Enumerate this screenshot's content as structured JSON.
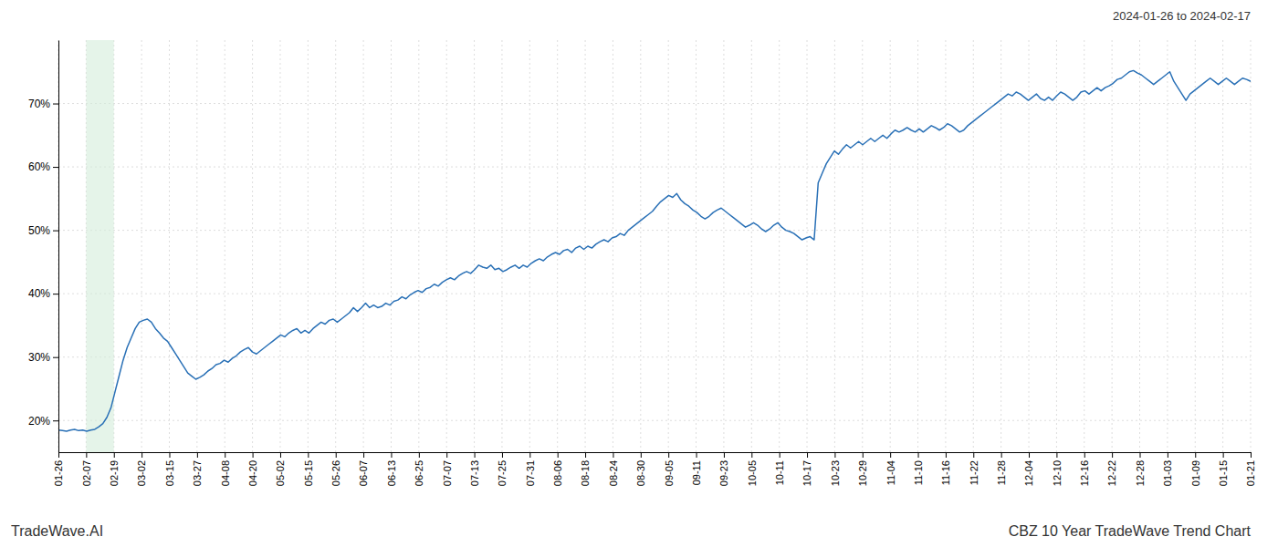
{
  "chart_data": {
    "type": "line",
    "title": "CBZ 10 Year TradeWave Trend Chart",
    "subtitle": "2024-01-26 to 2024-02-17",
    "annotations": [
      "TradeWave.AI"
    ],
    "color": "#2970b6",
    "grid": true,
    "xlim": [
      0,
      295
    ],
    "xticks": [
      {
        "value": 0,
        "label": "01-26"
      },
      {
        "value": 6.8604651163,
        "label": "02-07"
      },
      {
        "value": 13.7209302326,
        "label": "02-19"
      },
      {
        "value": 20.5813953488,
        "label": "03-02"
      },
      {
        "value": 27.4418604651,
        "label": "03-15"
      },
      {
        "value": 34.3023255814,
        "label": "03-27"
      },
      {
        "value": 41.1627906977,
        "label": "04-08"
      },
      {
        "value": 48.023255814,
        "label": "04-20"
      },
      {
        "value": 54.8837209302,
        "label": "05-02"
      },
      {
        "value": 61.7441860465,
        "label": "05-15"
      },
      {
        "value": 68.6046511628,
        "label": "05-26"
      },
      {
        "value": 75.4651162791,
        "label": "06-07"
      },
      {
        "value": 82.3255813953,
        "label": "06-13"
      },
      {
        "value": 89.1860465116,
        "label": "06-25"
      },
      {
        "value": 96.0465116279,
        "label": "07-07"
      },
      {
        "value": 102.9069767442,
        "label": "07-13"
      },
      {
        "value": 109.7674418605,
        "label": "07-25"
      },
      {
        "value": 116.6279069767,
        "label": "07-31"
      },
      {
        "value": 123.488372093,
        "label": "08-06"
      },
      {
        "value": 130.3488372093,
        "label": "08-18"
      },
      {
        "value": 137.2093023256,
        "label": "08-24"
      },
      {
        "value": 144.0697674419,
        "label": "08-30"
      },
      {
        "value": 150.9302325581,
        "label": "09-05"
      },
      {
        "value": 157.7906976744,
        "label": "09-11"
      },
      {
        "value": 164.6511627907,
        "label": "09-23"
      },
      {
        "value": 171.511627907,
        "label": "10-05"
      },
      {
        "value": 178.3720930233,
        "label": "10-11"
      },
      {
        "value": 185.2325581395,
        "label": "10-17"
      },
      {
        "value": 192.0930232558,
        "label": "10-23"
      },
      {
        "value": 198.9534883721,
        "label": "10-29"
      },
      {
        "value": 205.8139534884,
        "label": "11-04"
      },
      {
        "value": 212.6744186047,
        "label": "11-10"
      },
      {
        "value": 219.5348837209,
        "label": "11-16"
      },
      {
        "value": 226.3953488372,
        "label": "11-22"
      },
      {
        "value": 233.2558139535,
        "label": "11-28"
      },
      {
        "value": 240.1162790698,
        "label": "12-04"
      },
      {
        "value": 246.976744186,
        "label": "12-10"
      },
      {
        "value": 253.8372093023,
        "label": "12-16"
      },
      {
        "value": 260.6976744186,
        "label": "12-22"
      },
      {
        "value": 267.5581395349,
        "label": "12-28"
      },
      {
        "value": 274.4186046512,
        "label": "01-03"
      },
      {
        "value": 281.2790697674,
        "label": "01-09"
      },
      {
        "value": 288.1395348837,
        "label": "01-15"
      },
      {
        "value": 295,
        "label": "01-21"
      }
    ],
    "ylim": [
      15,
      80
    ],
    "yticks": [
      {
        "value": 20,
        "label": "20%"
      },
      {
        "value": 30,
        "label": "30%"
      },
      {
        "value": 40,
        "label": "40%"
      },
      {
        "value": 50,
        "label": "50%"
      },
      {
        "value": 60,
        "label": "60%"
      },
      {
        "value": 70,
        "label": "70%"
      }
    ],
    "highlight": {
      "x": [
        6.8604651163,
        13.7209302326
      ],
      "color": "#d4edda"
    },
    "x": [
      0,
      1,
      2,
      3,
      4,
      5,
      6,
      7,
      8,
      9,
      10,
      11,
      12,
      13,
      14,
      15,
      16,
      17,
      18,
      19,
      20,
      21,
      22,
      23,
      24,
      25,
      26,
      27,
      28,
      29,
      30,
      31,
      32,
      33,
      34,
      35,
      36,
      37,
      38,
      39,
      40,
      41,
      42,
      43,
      44,
      45,
      46,
      47,
      48,
      49,
      50,
      51,
      52,
      53,
      54,
      55,
      56,
      57,
      58,
      59,
      60,
      61,
      62,
      63,
      64,
      65,
      66,
      67,
      68,
      69,
      70,
      71,
      72,
      73,
      74,
      75,
      76,
      77,
      78,
      79,
      80,
      81,
      82,
      83,
      84,
      85,
      86,
      87,
      88,
      89,
      90,
      91,
      92,
      93,
      94,
      95,
      96,
      97,
      98,
      99,
      100,
      101,
      102,
      103,
      104,
      105,
      106,
      107,
      108,
      109,
      110,
      111,
      112,
      113,
      114,
      115,
      116,
      117,
      118,
      119,
      120,
      121,
      122,
      123,
      124,
      125,
      126,
      127,
      128,
      129,
      130,
      131,
      132,
      133,
      134,
      135,
      136,
      137,
      138,
      139,
      140,
      141,
      142,
      143,
      144,
      145,
      146,
      147,
      148,
      149,
      150,
      151,
      152,
      153,
      154,
      155,
      156,
      157,
      158,
      159,
      160,
      161,
      162,
      163,
      164,
      165,
      166,
      167,
      168,
      169,
      170,
      171,
      172,
      173,
      174,
      175,
      176,
      177,
      178,
      179,
      180,
      181,
      182,
      183,
      184,
      185,
      186,
      187,
      188,
      189,
      190,
      191,
      192,
      193,
      194,
      195,
      196,
      197,
      198,
      199,
      200,
      201,
      202,
      203,
      204,
      205,
      206,
      207,
      208,
      209,
      210,
      211,
      212,
      213,
      214,
      215,
      216,
      217,
      218,
      219,
      220,
      221,
      222,
      223,
      224,
      225,
      226,
      227,
      228,
      229,
      230,
      231,
      232,
      233,
      234,
      235,
      236,
      237,
      238,
      239,
      240,
      241,
      242,
      243,
      244,
      245,
      246,
      247,
      248,
      249,
      250,
      251,
      252,
      253,
      254,
      255,
      256,
      257,
      258,
      259,
      260,
      261,
      262,
      263,
      264,
      265,
      266,
      267,
      268,
      269,
      270,
      271,
      272,
      273,
      274,
      275,
      276,
      277,
      278,
      279,
      280,
      281,
      282,
      283,
      284,
      285,
      286,
      287,
      288,
      289,
      290,
      291,
      292,
      293,
      294,
      295
    ],
    "values": [
      18.5,
      18.4,
      18.3,
      18.5,
      18.6,
      18.4,
      18.5,
      18.3,
      18.5,
      18.6,
      19.0,
      19.5,
      20.5,
      22.0,
      24.5,
      27.0,
      29.5,
      31.5,
      33.0,
      34.5,
      35.5,
      35.8,
      36.0,
      35.5,
      34.5,
      33.8,
      33.0,
      32.5,
      31.5,
      30.5,
      29.5,
      28.5,
      27.5,
      27.0,
      26.5,
      26.8,
      27.2,
      27.8,
      28.2,
      28.8,
      29.0,
      29.5,
      29.2,
      29.8,
      30.2,
      30.8,
      31.2,
      31.5,
      30.8,
      30.5,
      31.0,
      31.5,
      32.0,
      32.5,
      33.0,
      33.5,
      33.2,
      33.8,
      34.2,
      34.5,
      33.8,
      34.2,
      33.8,
      34.5,
      35.0,
      35.5,
      35.2,
      35.8,
      36.0,
      35.5,
      36.0,
      36.5,
      37.0,
      37.8,
      37.2,
      37.8,
      38.5,
      37.8,
      38.2,
      37.8,
      38.0,
      38.5,
      38.2,
      38.8,
      39.0,
      39.5,
      39.2,
      39.8,
      40.2,
      40.5,
      40.2,
      40.8,
      41.0,
      41.5,
      41.2,
      41.8,
      42.2,
      42.5,
      42.2,
      42.8,
      43.2,
      43.5,
      43.2,
      43.8,
      44.5,
      44.2,
      44.0,
      44.5,
      43.8,
      44.0,
      43.5,
      43.8,
      44.2,
      44.5,
      44.0,
      44.5,
      44.2,
      44.8,
      45.2,
      45.5,
      45.2,
      45.8,
      46.2,
      46.5,
      46.2,
      46.8,
      47.0,
      46.5,
      47.2,
      47.5,
      47.0,
      47.5,
      47.2,
      47.8,
      48.2,
      48.5,
      48.2,
      48.8,
      49.0,
      49.5,
      49.2,
      50.0,
      50.5,
      51.0,
      51.5,
      52.0,
      52.5,
      53.0,
      53.8,
      54.5,
      55.0,
      55.5,
      55.2,
      55.8,
      54.8,
      54.2,
      53.8,
      53.2,
      52.8,
      52.2,
      51.8,
      52.2,
      52.8,
      53.2,
      53.5,
      53.0,
      52.5,
      52.0,
      51.5,
      51.0,
      50.5,
      50.8,
      51.2,
      50.8,
      50.2,
      49.8,
      50.2,
      50.8,
      51.2,
      50.5,
      50.0,
      49.8,
      49.5,
      49.0,
      48.5,
      48.8,
      49.0,
      48.5,
      57.5,
      59.0,
      60.5,
      61.5,
      62.5,
      62.0,
      62.8,
      63.5,
      63.0,
      63.5,
      64.0,
      63.5,
      64.0,
      64.5,
      64.0,
      64.5,
      65.0,
      64.5,
      65.2,
      65.8,
      65.5,
      65.8,
      66.2,
      65.8,
      65.5,
      66.0,
      65.5,
      66.0,
      66.5,
      66.2,
      65.8,
      66.2,
      66.8,
      66.5,
      66.0,
      65.5,
      65.8,
      66.5,
      67.0,
      67.5,
      68.0,
      68.5,
      69.0,
      69.5,
      70.0,
      70.5,
      71.0,
      71.5,
      71.2,
      71.8,
      71.5,
      71.0,
      70.5,
      71.0,
      71.5,
      70.8,
      70.5,
      71.0,
      70.5,
      71.2,
      71.8,
      71.5,
      71.0,
      70.5,
      71.0,
      71.8,
      72.0,
      71.5,
      72.0,
      72.5,
      72.0,
      72.5,
      72.8,
      73.2,
      73.8,
      74.0,
      74.5,
      75.0,
      75.2,
      74.8,
      74.5,
      74.0,
      73.5,
      73.0,
      73.5,
      74.0,
      74.5,
      75.0,
      73.5,
      72.5,
      71.5,
      70.5,
      71.5,
      72.0,
      72.5,
      73.0,
      73.5,
      74.0,
      73.5,
      73.0,
      73.5,
      74.0,
      73.5,
      73.0,
      73.5,
      74.0,
      73.8,
      73.5
    ]
  }
}
